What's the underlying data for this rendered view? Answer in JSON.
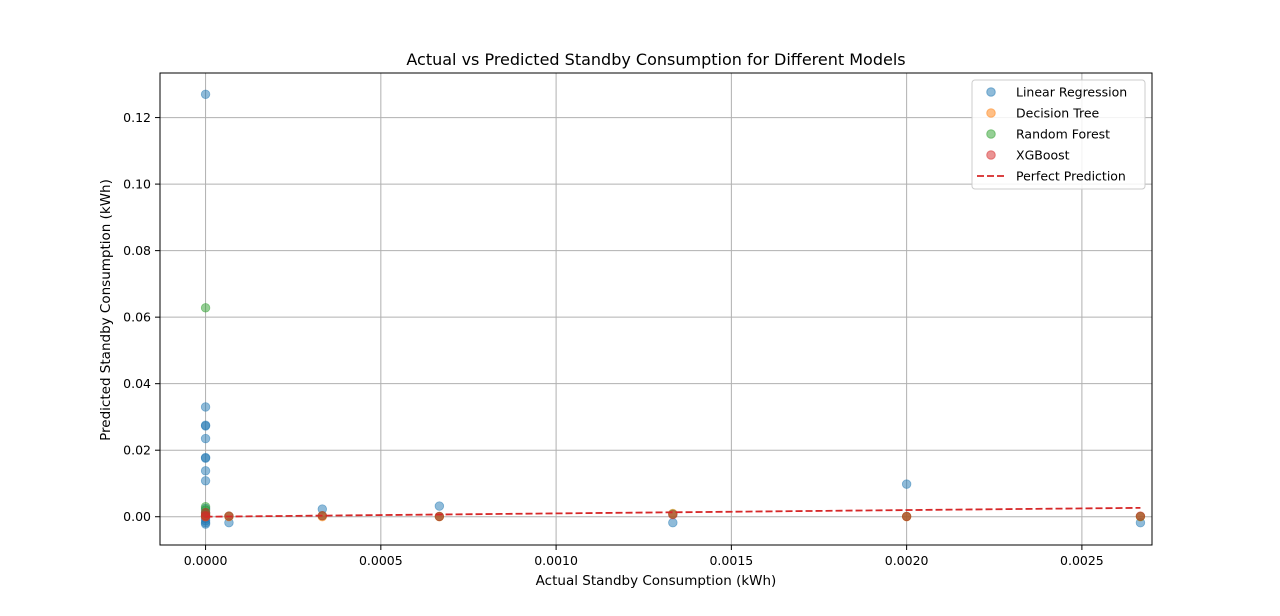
{
  "chart_data": {
    "type": "scatter",
    "title": "Actual vs Predicted Standby Consumption for Different Models",
    "xlabel": "Actual Standby Consumption (kWh)",
    "ylabel": "Predicted Standby Consumption (kWh)",
    "xlim": [
      -0.00013,
      0.0027
    ],
    "ylim": [
      -0.0085,
      0.1334
    ],
    "xticks": [
      0.0,
      0.0005,
      0.001,
      0.0015,
      0.002,
      0.0025
    ],
    "xtick_labels": [
      "0.0000",
      "0.0005",
      "0.0010",
      "0.0015",
      "0.0020",
      "0.0025"
    ],
    "yticks": [
      0.0,
      0.02,
      0.04,
      0.06,
      0.08,
      0.1,
      0.12
    ],
    "ytick_labels": [
      "0.00",
      "0.02",
      "0.04",
      "0.06",
      "0.08",
      "0.10",
      "0.12"
    ],
    "grid": true,
    "legend_position": "top-right",
    "series": [
      {
        "name": "Linear Regression",
        "color": "#1f77b4",
        "points": [
          [
            0,
            0.127
          ],
          [
            0,
            0.033
          ],
          [
            0,
            0.0275
          ],
          [
            0,
            0.0273
          ],
          [
            0,
            0.0235
          ],
          [
            0,
            0.0178
          ],
          [
            0,
            0.0176
          ],
          [
            0,
            0.0138
          ],
          [
            0,
            0.0108
          ],
          [
            0,
            0.0025
          ],
          [
            0,
            0.0012
          ],
          [
            0,
            0.0003
          ],
          [
            0,
            -0.0005
          ],
          [
            0,
            -0.0012
          ],
          [
            0,
            -0.0018
          ],
          [
            0,
            -0.0022
          ],
          [
            6.67e-05,
            -0.0018
          ],
          [
            0.000333,
            0.0023
          ],
          [
            0.000667,
            0.0032
          ],
          [
            0.001333,
            -0.0018
          ],
          [
            0.002,
            0.0098
          ],
          [
            0.002667,
            -0.0018
          ]
        ]
      },
      {
        "name": "Decision Tree",
        "color": "#ff7f0e",
        "points": [
          [
            0,
            0.0
          ],
          [
            0,
            0.0005
          ],
          [
            6.67e-05,
            0.0
          ],
          [
            0.000333,
            0.0
          ],
          [
            0.000667,
            0.0
          ],
          [
            0.001333,
            0.001
          ],
          [
            0.002,
            0.0
          ],
          [
            0.002667,
            0.0
          ]
        ]
      },
      {
        "name": "Random Forest",
        "color": "#2ca02c",
        "points": [
          [
            0,
            0.0628
          ],
          [
            0,
            0.003
          ],
          [
            0,
            0.002
          ],
          [
            0,
            0.001
          ],
          [
            0,
            0.0003
          ],
          [
            6.67e-05,
            0.0002
          ],
          [
            0.000333,
            0.0003
          ],
          [
            0.000667,
            0.0001
          ],
          [
            0.001333,
            0.0008
          ],
          [
            0.002,
            0.0001
          ],
          [
            0.002667,
            0.0001
          ]
        ]
      },
      {
        "name": "XGBoost",
        "color": "#d62728",
        "points": [
          [
            0,
            0.0012
          ],
          [
            0,
            0.0004
          ],
          [
            0,
            0.0
          ],
          [
            6.67e-05,
            0.0002
          ],
          [
            0.000333,
            0.0003
          ],
          [
            0.000667,
            0.0001
          ],
          [
            0.001333,
            0.0006
          ],
          [
            0.002,
            0.0001
          ],
          [
            0.002667,
            0.0002
          ]
        ]
      }
    ],
    "reference_line": {
      "name": "Perfect Prediction",
      "color": "#d62728",
      "style": "dashed",
      "x": [
        0,
        0.002667
      ],
      "y": [
        0,
        0.002667
      ]
    }
  }
}
